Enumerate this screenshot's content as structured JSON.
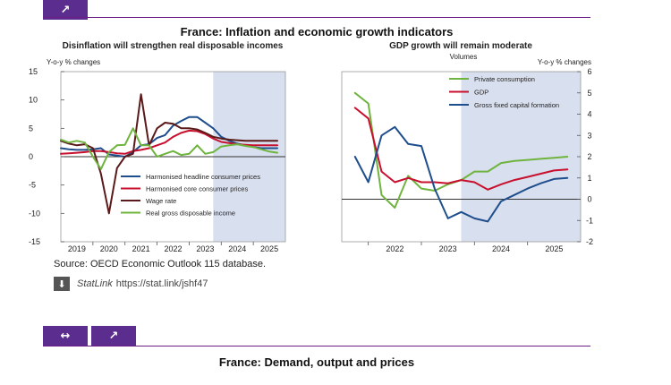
{
  "figure": {
    "expand_icon": "↗",
    "title": "France: Inflation and economic growth indicators",
    "source": "Source: OECD Economic Outlook 115 database.",
    "statlink_label": "StatLink",
    "statlink_url": "https://stat.link/jshf47",
    "download_icon": "⬇"
  },
  "next_section": {
    "swap_icon": "↔",
    "expand_icon": "↗",
    "title": "France: Demand, output and prices"
  },
  "colors": {
    "headline": "#1f4e8c",
    "core": "#c8102e",
    "wage": "#5a1a1a",
    "income": "#6fb43f",
    "projection_shade": "#d8dfee"
  },
  "chart_data": [
    {
      "type": "line",
      "title": "Disinflation will strengthen real disposable incomes",
      "ylabel": "Y-o-y % changes",
      "ylim": [
        -15,
        15
      ],
      "yticks": [
        -15,
        -10,
        -5,
        0,
        5,
        10,
        15
      ],
      "x_ticks": [
        "2019",
        "2020",
        "2021",
        "2022",
        "2023",
        "2024",
        "2025"
      ],
      "xlim": [
        2018.75,
        2025.75
      ],
      "projection_start": 2023.5,
      "series": [
        {
          "name": "Harmonised headline consumer prices",
          "color_key": "headline",
          "x": [
            2018.75,
            2019.0,
            2019.25,
            2019.5,
            2019.75,
            2020.0,
            2020.25,
            2020.5,
            2020.75,
            2021.0,
            2021.25,
            2021.5,
            2021.75,
            2022.0,
            2022.25,
            2022.5,
            2022.75,
            2023.0,
            2023.25,
            2023.5,
            2023.75,
            2024.0,
            2024.25,
            2024.5,
            2024.75,
            2025.0,
            2025.25,
            2025.5
          ],
          "values": [
            1.5,
            1.3,
            1.2,
            1.2,
            1.3,
            1.5,
            0.4,
            0.2,
            0.0,
            0.8,
            2.0,
            2.2,
            3.3,
            3.8,
            5.5,
            6.3,
            7.0,
            7.0,
            6.0,
            5.0,
            3.5,
            2.8,
            2.3,
            2.0,
            1.7,
            1.5,
            1.5,
            1.5
          ]
        },
        {
          "name": "Harmonised core consumer prices",
          "color_key": "core",
          "x": [
            2018.75,
            2019.0,
            2019.25,
            2019.5,
            2019.75,
            2020.0,
            2020.25,
            2020.5,
            2020.75,
            2021.0,
            2021.25,
            2021.5,
            2021.75,
            2022.0,
            2022.25,
            2022.5,
            2022.75,
            2023.0,
            2023.25,
            2023.5,
            2023.75,
            2024.0,
            2024.25,
            2024.5,
            2024.75,
            2025.0,
            2025.25,
            2025.5
          ],
          "values": [
            0.5,
            0.6,
            0.7,
            0.8,
            1.0,
            1.0,
            0.8,
            0.6,
            0.5,
            1.0,
            1.2,
            1.5,
            2.0,
            2.5,
            3.5,
            4.2,
            4.6,
            4.5,
            4.0,
            3.2,
            2.6,
            2.4,
            2.2,
            2.1,
            2.0,
            2.0,
            2.0,
            2.0
          ]
        },
        {
          "name": "Wage rate",
          "color_key": "wage",
          "x": [
            2018.75,
            2019.0,
            2019.25,
            2019.5,
            2019.75,
            2020.0,
            2020.25,
            2020.5,
            2020.75,
            2021.0,
            2021.25,
            2021.5,
            2021.75,
            2022.0,
            2022.25,
            2022.5,
            2022.75,
            2023.0,
            2023.25,
            2023.5,
            2023.75,
            2024.0,
            2024.25,
            2024.5,
            2024.75,
            2025.0,
            2025.25,
            2025.5
          ],
          "values": [
            2.8,
            2.3,
            2.0,
            2.2,
            1.5,
            -3.0,
            -10.0,
            -2.0,
            0.0,
            0.5,
            11.0,
            2.0,
            5.0,
            6.0,
            5.8,
            5.0,
            5.0,
            4.8,
            4.2,
            3.5,
            3.2,
            3.0,
            2.9,
            2.8,
            2.8,
            2.8,
            2.8,
            2.8
          ]
        },
        {
          "name": "Real gross disposable income",
          "color_key": "income",
          "x": [
            2018.75,
            2019.0,
            2019.25,
            2019.5,
            2019.75,
            2020.0,
            2020.25,
            2020.5,
            2020.75,
            2021.0,
            2021.25,
            2021.5,
            2021.75,
            2022.0,
            2022.25,
            2022.5,
            2022.75,
            2023.0,
            2023.25,
            2023.5,
            2023.75,
            2024.0,
            2024.25,
            2024.5,
            2024.75,
            2025.0,
            2025.25,
            2025.5
          ],
          "values": [
            3.0,
            2.5,
            2.8,
            2.5,
            0.0,
            -2.2,
            0.8,
            2.0,
            2.1,
            5.0,
            2.0,
            2.0,
            0.0,
            0.5,
            1.0,
            0.3,
            0.5,
            2.0,
            0.5,
            0.8,
            1.8,
            2.0,
            2.2,
            1.9,
            1.7,
            1.3,
            0.9,
            0.7
          ]
        }
      ]
    },
    {
      "type": "line",
      "title": "GDP growth will remain moderate",
      "subtitle": "Volumes",
      "ylabel": "Y-o-y % changes",
      "ylim": [
        -2,
        6
      ],
      "yticks": [
        -2,
        -1,
        0,
        1,
        2,
        3,
        4,
        5,
        6
      ],
      "x_ticks": [
        "2022",
        "2023",
        "2024",
        "2025"
      ],
      "xlim": [
        2021.25,
        2025.75
      ],
      "projection_start": 2023.5,
      "series": [
        {
          "name": "Private consumption",
          "color_key": "income",
          "x": [
            2021.5,
            2021.75,
            2022.0,
            2022.25,
            2022.5,
            2022.75,
            2023.0,
            2023.25,
            2023.5,
            2023.75,
            2024.0,
            2024.25,
            2024.5,
            2024.75,
            2025.0,
            2025.25,
            2025.5
          ],
          "values": [
            5.0,
            4.5,
            0.2,
            -0.4,
            1.1,
            0.5,
            0.4,
            0.7,
            0.9,
            1.3,
            1.3,
            1.7,
            1.8,
            1.85,
            1.9,
            1.95,
            2.0
          ]
        },
        {
          "name": "GDP",
          "color_key": "core",
          "x": [
            2021.5,
            2021.75,
            2022.0,
            2022.25,
            2022.5,
            2022.75,
            2023.0,
            2023.25,
            2023.5,
            2023.75,
            2024.0,
            2024.25,
            2024.5,
            2024.75,
            2025.0,
            2025.25,
            2025.5
          ],
          "values": [
            4.3,
            3.8,
            1.3,
            0.8,
            1.0,
            0.8,
            0.8,
            0.75,
            0.9,
            0.8,
            0.45,
            0.7,
            0.9,
            1.05,
            1.2,
            1.35,
            1.4
          ]
        },
        {
          "name": "Gross fixed capital formation",
          "color_key": "headline",
          "x": [
            2021.5,
            2021.75,
            2022.0,
            2022.25,
            2022.5,
            2022.75,
            2023.0,
            2023.25,
            2023.5,
            2023.75,
            2024.0,
            2024.25,
            2024.5,
            2024.75,
            2025.0,
            2025.25,
            2025.5
          ],
          "values": [
            2.0,
            0.8,
            3.0,
            3.4,
            2.6,
            2.5,
            0.5,
            -0.9,
            -0.6,
            -0.9,
            -1.05,
            -0.1,
            0.2,
            0.5,
            0.75,
            0.95,
            1.0
          ]
        }
      ]
    }
  ]
}
